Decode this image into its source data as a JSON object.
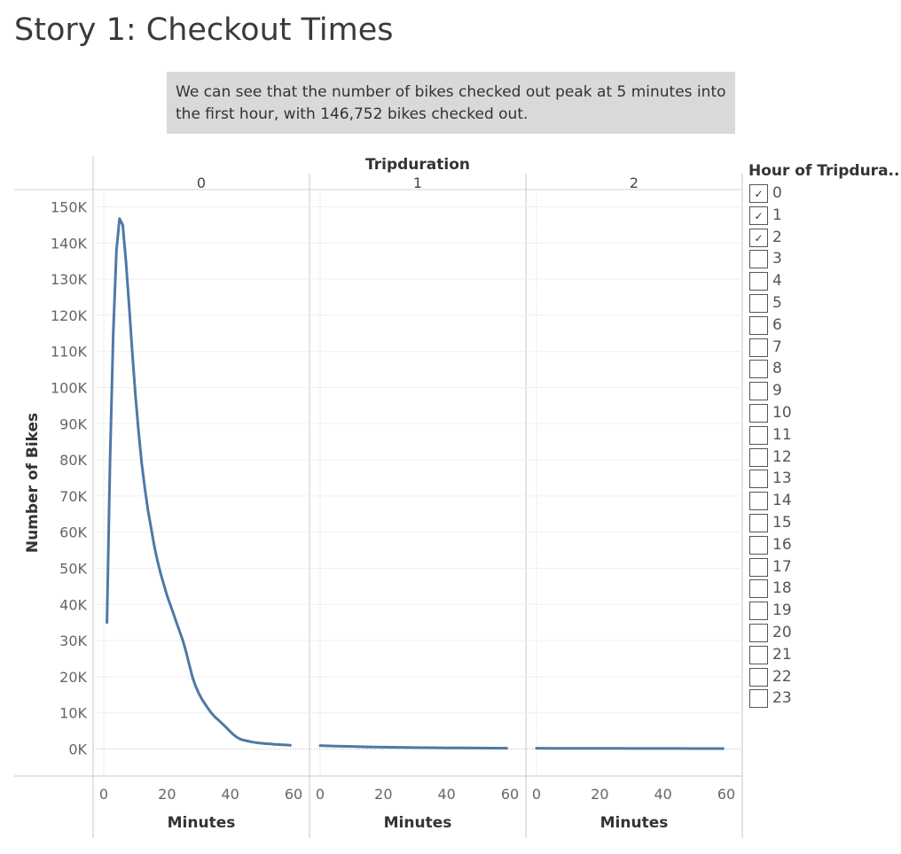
{
  "page": {
    "title": "Story 1: Checkout Times",
    "caption": "We can see that the number of bikes checked out peak at 5 minutes into the first hour, with 146,752 bikes checked out."
  },
  "legend": {
    "title": "Hour of Tripdura..",
    "items": [
      {
        "label": "0",
        "checked": true
      },
      {
        "label": "1",
        "checked": true
      },
      {
        "label": "2",
        "checked": true
      },
      {
        "label": "3",
        "checked": false
      },
      {
        "label": "4",
        "checked": false
      },
      {
        "label": "5",
        "checked": false
      },
      {
        "label": "6",
        "checked": false
      },
      {
        "label": "7",
        "checked": false
      },
      {
        "label": "8",
        "checked": false
      },
      {
        "label": "9",
        "checked": false
      },
      {
        "label": "10",
        "checked": false
      },
      {
        "label": "11",
        "checked": false
      },
      {
        "label": "12",
        "checked": false
      },
      {
        "label": "13",
        "checked": false
      },
      {
        "label": "14",
        "checked": false
      },
      {
        "label": "15",
        "checked": false
      },
      {
        "label": "16",
        "checked": false
      },
      {
        "label": "17",
        "checked": false
      },
      {
        "label": "18",
        "checked": false
      },
      {
        "label": "19",
        "checked": false
      },
      {
        "label": "20",
        "checked": false
      },
      {
        "label": "21",
        "checked": false
      },
      {
        "label": "22",
        "checked": false
      },
      {
        "label": "23",
        "checked": false
      }
    ],
    "check_glyph": "✓"
  },
  "chart_data": {
    "type": "line",
    "title": "Tripduration",
    "xlabel": "Minutes",
    "ylabel": "Number of Bikes",
    "ylim": [
      0,
      150000
    ],
    "xlim": [
      0,
      60
    ],
    "y_ticks": [
      "0K",
      "10K",
      "20K",
      "30K",
      "40K",
      "50K",
      "60K",
      "70K",
      "80K",
      "90K",
      "100K",
      "110K",
      "120K",
      "130K",
      "140K",
      "150K"
    ],
    "y_tick_values": [
      0,
      10000,
      20000,
      30000,
      40000,
      50000,
      60000,
      70000,
      80000,
      90000,
      100000,
      110000,
      120000,
      130000,
      140000,
      150000
    ],
    "x_ticks": [
      "0",
      "20",
      "40",
      "60"
    ],
    "x_tick_values": [
      0,
      20,
      40,
      60
    ],
    "grid": true,
    "line_color": "#4e79a7",
    "panels": [
      {
        "label": "0",
        "x": [
          1,
          2,
          3,
          4,
          5,
          6,
          7,
          8,
          9,
          10,
          11,
          12,
          13,
          14,
          15,
          16,
          17,
          18,
          19,
          20,
          21,
          22,
          23,
          24,
          25,
          26,
          27,
          28,
          29,
          30,
          31,
          32,
          33,
          34,
          35,
          36,
          37,
          38,
          39,
          40,
          41,
          42,
          43,
          44,
          45,
          46,
          47,
          48,
          49,
          50,
          51,
          52,
          53,
          54,
          55,
          56,
          57,
          58,
          59
        ],
        "values": [
          35000,
          80000,
          115000,
          138000,
          146752,
          145000,
          135000,
          123000,
          110000,
          98000,
          88000,
          79000,
          72000,
          66000,
          61000,
          56000,
          52000,
          48500,
          45500,
          42500,
          40000,
          37500,
          35000,
          32500,
          30000,
          27000,
          23500,
          20000,
          17500,
          15500,
          13800,
          12500,
          11200,
          10000,
          9000,
          8200,
          7400,
          6600,
          5700,
          4800,
          4000,
          3300,
          2800,
          2500,
          2300,
          2100,
          1900,
          1800,
          1700,
          1600,
          1500,
          1450,
          1400,
          1300,
          1250,
          1200,
          1150,
          1100,
          1050
        ]
      },
      {
        "label": "1",
        "x": [
          0,
          5,
          10,
          15,
          20,
          25,
          30,
          35,
          40,
          45,
          50,
          55,
          59
        ],
        "values": [
          950,
          800,
          700,
          600,
          520,
          460,
          400,
          360,
          330,
          300,
          270,
          250,
          230
        ]
      },
      {
        "label": "2",
        "x": [
          0,
          5,
          10,
          15,
          20,
          25,
          30,
          35,
          40,
          45,
          50,
          55,
          59
        ],
        "values": [
          220,
          200,
          190,
          180,
          170,
          160,
          150,
          145,
          140,
          135,
          130,
          125,
          120
        ]
      }
    ]
  }
}
